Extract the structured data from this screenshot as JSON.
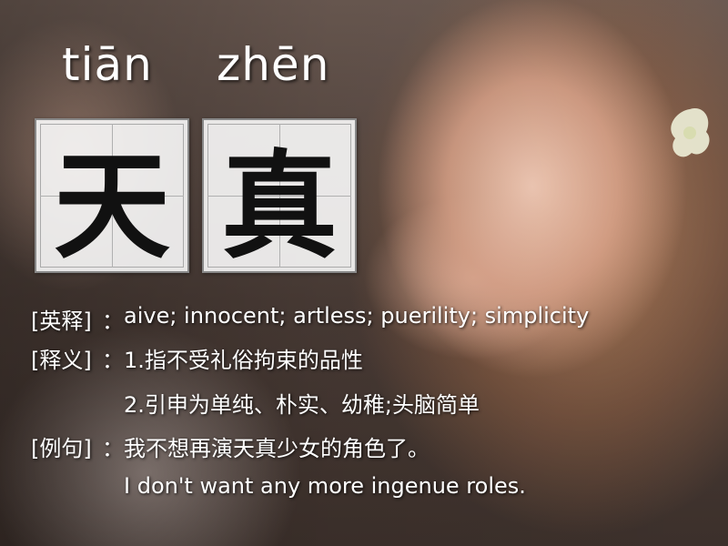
{
  "pinyin": [
    "tiān",
    "zhēn"
  ],
  "characters": [
    "天",
    "真"
  ],
  "english": {
    "label": "[英释]",
    "separator": "：",
    "text": "aive; innocent; artless; puerility; simplicity"
  },
  "meaning": {
    "label": "[释义]",
    "separator": "：",
    "items": [
      "1.指不受礼俗拘束的品性",
      "2.引申为单纯、朴实、幼稚;头脑简单"
    ]
  },
  "example": {
    "label": "[例句]",
    "separator": "：",
    "chinese": "我不想再演天真少女的角色了。",
    "english": "I don't want any more ingenue roles."
  },
  "colors": {
    "text": "#ffffff",
    "box_fill": "#fafafa",
    "glyph": "#111111"
  }
}
